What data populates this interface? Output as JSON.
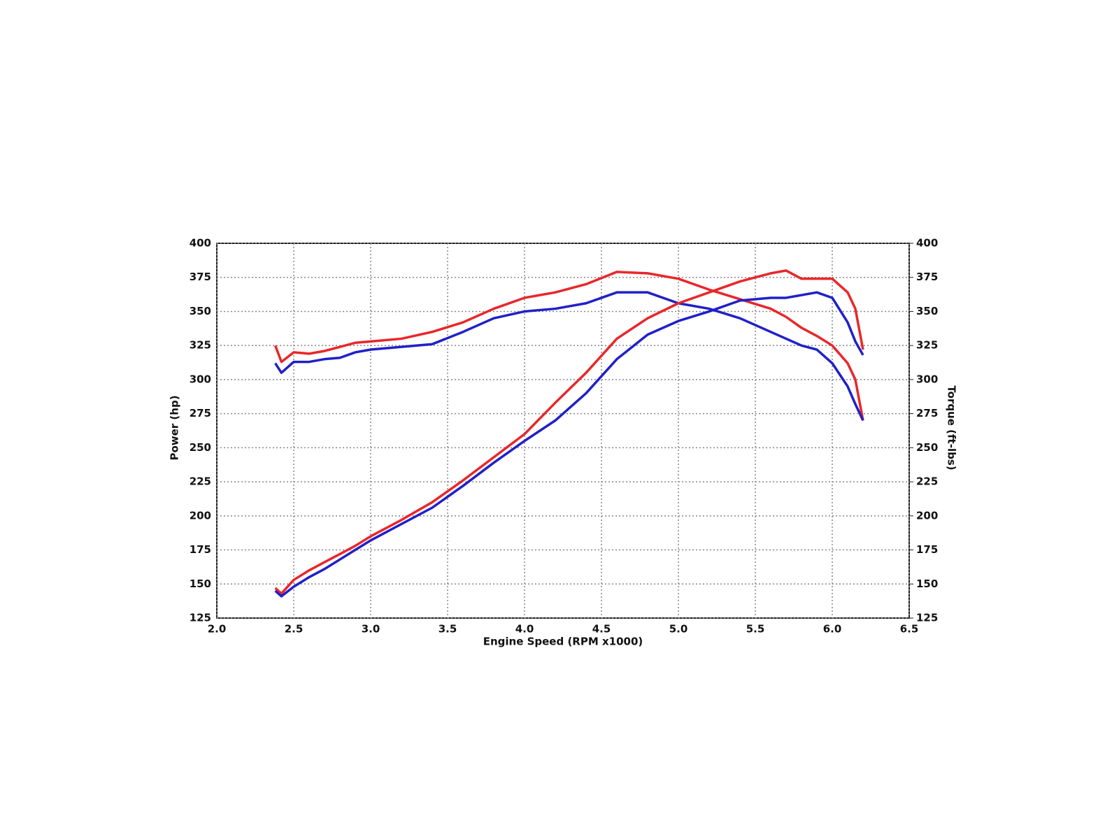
{
  "chart_data": {
    "type": "line",
    "xlabel": "Engine Speed (RPM x1000)",
    "ylabel": "Power (hp)",
    "y2label": "Torque (ft-lbs)",
    "x": [
      2.38,
      2.42,
      2.5,
      2.6,
      2.7,
      2.8,
      2.9,
      3.0,
      3.2,
      3.4,
      3.6,
      3.8,
      4.0,
      4.2,
      4.4,
      4.6,
      4.8,
      5.0,
      5.2,
      5.4,
      5.6,
      5.7,
      5.8,
      5.9,
      6.0,
      6.1,
      6.15,
      6.2
    ],
    "series": [
      {
        "color": "#e8272a",
        "axis": "y2",
        "values": [
          325,
          313,
          320,
          319,
          321,
          324,
          327,
          328,
          330,
          335,
          342,
          352,
          360,
          364,
          370,
          379,
          378,
          374,
          366,
          359,
          352,
          346,
          338,
          332,
          325,
          312,
          300,
          270
        ]
      },
      {
        "color": "#2020c8",
        "axis": "y2",
        "values": [
          312,
          305,
          313,
          313,
          315,
          316,
          320,
          322,
          324,
          326,
          335,
          345,
          350,
          352,
          356,
          364,
          364,
          356,
          352,
          345,
          335,
          330,
          325,
          322,
          312,
          295,
          282,
          270
        ]
      },
      {
        "color": "#e8272a",
        "values": [
          147,
          143,
          153,
          160,
          166,
          172,
          178,
          185,
          197,
          210,
          226,
          243,
          260,
          283,
          305,
          330,
          345,
          356,
          364,
          372,
          378,
          380,
          374,
          374,
          374,
          364,
          352,
          322
        ]
      },
      {
        "color": "#2020c8",
        "values": [
          145,
          141,
          148,
          155,
          161,
          168,
          175,
          182,
          194,
          206,
          222,
          239,
          255,
          270,
          290,
          315,
          333,
          343,
          350,
          358,
          360,
          360,
          362,
          364,
          360,
          342,
          328,
          318
        ]
      }
    ],
    "xlim": [
      2,
      6.5
    ],
    "xticks": [
      {
        "value": 2,
        "label": "2.0"
      },
      2.5,
      {
        "value": 3,
        "label": "3.0"
      },
      3.5,
      {
        "value": 4,
        "label": "4.0"
      },
      4.5,
      {
        "value": 5,
        "label": "5.0"
      },
      5.5,
      {
        "value": 6,
        "label": "6.0"
      },
      6.5
    ],
    "ylim": [
      125,
      400
    ],
    "yticks": [
      125,
      150,
      175,
      200,
      225,
      250,
      275,
      300,
      325,
      350,
      375,
      400
    ],
    "y2lim": [
      125,
      400
    ],
    "y2ticks": [
      125,
      150,
      175,
      200,
      225,
      250,
      275,
      300,
      325,
      350,
      375,
      400
    ],
    "grid": true
  }
}
